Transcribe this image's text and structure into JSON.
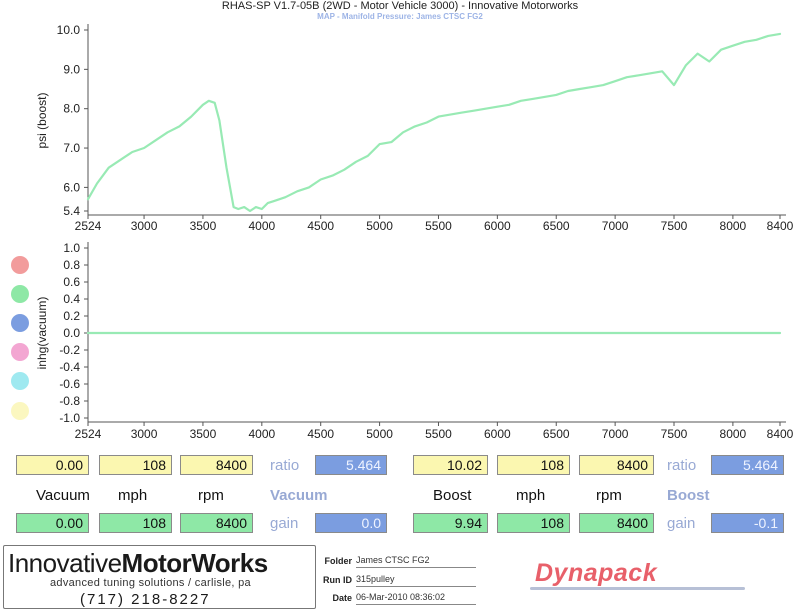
{
  "header": {
    "title": "RHAS-SP V1.7-05B   (2WD - Motor Vehicle 3000) - Innovative Motorworks",
    "subtitle": "MAP - Manifold Pressure: James CTSC FG2"
  },
  "chart_data": [
    {
      "type": "line",
      "ylabel": "psi (boost)",
      "x_tick_labels": [
        "2524",
        "3000",
        "3500",
        "4000",
        "4500",
        "5000",
        "5500",
        "6000",
        "6500",
        "7000",
        "7500",
        "8000",
        "8400"
      ],
      "y_tick_labels": [
        "5.4",
        "6.0",
        "7.0",
        "8.0",
        "9.0",
        "10.0"
      ],
      "xlim": [
        2524,
        8400
      ],
      "ylim": [
        5.4,
        10.0
      ],
      "grid": false,
      "series": [
        {
          "color": "#98eab4",
          "x": [
            2524,
            2600,
            2700,
            2800,
            2900,
            3000,
            3100,
            3200,
            3300,
            3400,
            3500,
            3550,
            3600,
            3640,
            3700,
            3760,
            3800,
            3850,
            3900,
            3950,
            4000,
            4050,
            4100,
            4200,
            4300,
            4400,
            4500,
            4600,
            4700,
            4800,
            4900,
            5000,
            5100,
            5200,
            5300,
            5400,
            5500,
            5600,
            5700,
            5800,
            5900,
            6000,
            6100,
            6200,
            6300,
            6400,
            6500,
            6600,
            6700,
            6800,
            6900,
            7000,
            7100,
            7200,
            7300,
            7400,
            7500,
            7600,
            7700,
            7800,
            7900,
            8000,
            8100,
            8200,
            8300,
            8400
          ],
          "y": [
            5.7,
            6.1,
            6.5,
            6.7,
            6.9,
            7.0,
            7.2,
            7.4,
            7.55,
            7.8,
            8.1,
            8.2,
            8.15,
            7.7,
            6.5,
            5.5,
            5.45,
            5.5,
            5.4,
            5.5,
            5.45,
            5.6,
            5.65,
            5.75,
            5.9,
            6.0,
            6.2,
            6.3,
            6.45,
            6.65,
            6.8,
            7.1,
            7.15,
            7.4,
            7.55,
            7.65,
            7.8,
            7.85,
            7.9,
            7.95,
            8.0,
            8.05,
            8.1,
            8.2,
            8.25,
            8.3,
            8.35,
            8.45,
            8.5,
            8.55,
            8.6,
            8.7,
            8.8,
            8.85,
            8.9,
            8.95,
            8.6,
            9.1,
            9.4,
            9.2,
            9.5,
            9.6,
            9.7,
            9.75,
            9.85,
            9.9
          ]
        }
      ]
    },
    {
      "type": "line",
      "ylabel": "inhg(vacuum)",
      "x_tick_labels": [
        "2524",
        "3000",
        "3500",
        "4000",
        "4500",
        "5000",
        "5500",
        "6000",
        "6500",
        "7000",
        "7500",
        "8000",
        "8400"
      ],
      "y_tick_labels": [
        "1.0",
        "0.8",
        "0.6",
        "0.4",
        "0.2",
        "0.0",
        "-0.2",
        "-0.4",
        "-0.6",
        "-0.8",
        "-1.0"
      ],
      "xlim": [
        2524,
        8400
      ],
      "ylim": [
        -1.0,
        1.0
      ],
      "grid": false,
      "series": [
        {
          "color": "#98eab4",
          "x": [
            2524,
            8400
          ],
          "y": [
            0.0,
            0.0
          ]
        }
      ]
    }
  ],
  "series_dots": [
    {
      "color": "#f29c9c"
    },
    {
      "color": "#8ee8a6"
    },
    {
      "color": "#7b9de0"
    },
    {
      "color": "#f3a6d2"
    },
    {
      "color": "#9fe9f0"
    },
    {
      "color": "#fbf7c0"
    }
  ],
  "readouts": {
    "vacuum": {
      "row1": [
        "0.00",
        "108",
        "8400"
      ],
      "ratio_label": "ratio",
      "ratio_value": "5.464",
      "labels": [
        "Vacuum",
        "mph",
        "rpm"
      ],
      "heading": "Vacuum",
      "row2": [
        "0.00",
        "108",
        "8400"
      ],
      "gain_label": "gain",
      "gain_value": "0.0"
    },
    "boost": {
      "row1": [
        "10.02",
        "108",
        "8400"
      ],
      "ratio_label": "ratio",
      "ratio_value": "5.464",
      "labels": [
        "Boost",
        "mph",
        "rpm"
      ],
      "heading": "Boost",
      "row2": [
        "9.94",
        "108",
        "8400"
      ],
      "gain_label": "gain",
      "gain_value": "-0.1"
    }
  },
  "footer": {
    "logo_regular": "Innovative",
    "logo_bold": "MotorWorks",
    "tagline": "advanced tuning solutions / carlisle, pa",
    "phone": "(717) 218-8227",
    "folder_label": "Folder",
    "folder_value": "James CTSC FG2",
    "runid_label": "Run ID",
    "runid_value": "315pulley",
    "date_label": "Date",
    "date_value": "06-Mar-2010  08:36:02",
    "brand": "Dynapack"
  }
}
